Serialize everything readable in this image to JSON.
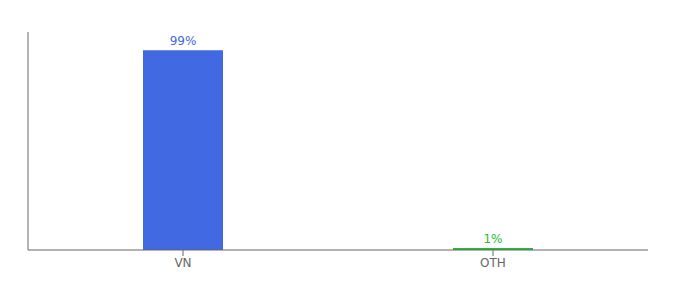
{
  "chart_data": {
    "type": "bar",
    "categories": [
      "VN",
      "OTH"
    ],
    "values": [
      99,
      1
    ],
    "value_labels": [
      "99%",
      "1%"
    ],
    "colors": [
      "#4169e1",
      "#22bb33"
    ],
    "ylim": [
      0,
      108
    ],
    "data_labels": true,
    "tick_labels": "x",
    "grid": false
  }
}
